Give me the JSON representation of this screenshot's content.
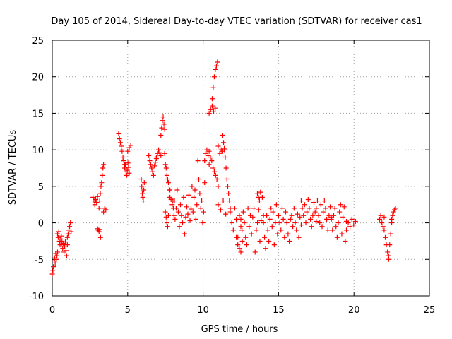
{
  "chart_data": {
    "type": "scatter",
    "title": "Day 105 of 2014, Sidereal Day-to-day VTEC variation (SDTVAR) for receiver cas1",
    "xlabel": "GPS time / hours",
    "ylabel": "SDTVAR / TECUs",
    "xlim": [
      0,
      25
    ],
    "ylim": [
      -10,
      25
    ],
    "xticks": [
      0,
      5,
      10,
      15,
      20,
      25
    ],
    "yticks": [
      -10,
      -5,
      0,
      5,
      10,
      15,
      20,
      25
    ],
    "grid": true,
    "marker": "+",
    "color": "#ff0000",
    "series": [
      {
        "name": "SDTVAR",
        "segments": [
          {
            "x0": 0.0,
            "x1": 0.35,
            "ys": [
              -7,
              -6.5,
              -6,
              -5.2,
              -4.8,
              -5.5,
              -4.2,
              -5,
              -4.5,
              -4
            ]
          },
          {
            "x0": 0.35,
            "x1": 0.6,
            "ys": [
              -1.5,
              -2,
              -1.2,
              -2.5,
              -3,
              -2.2,
              -1.8
            ]
          },
          {
            "x0": 0.6,
            "x1": 1.0,
            "ys": [
              -3,
              -2.5,
              -3.5,
              -2.8,
              -4,
              -3.2,
              -2.6,
              -3.8,
              -4.5,
              -3
            ]
          },
          {
            "x0": 1.0,
            "x1": 1.25,
            "ys": [
              -2,
              -1.5,
              -1,
              -0.5,
              0,
              -1.2
            ]
          },
          {
            "x0": 2.7,
            "x1": 3.0,
            "ys": [
              3.5,
              3,
              2.5,
              3.2,
              2.8,
              3.6
            ]
          },
          {
            "x0": 3.0,
            "x1": 3.2,
            "ys": [
              -0.8,
              -1,
              -1.2,
              -0.9,
              -2
            ]
          },
          {
            "x0": 3.1,
            "x1": 3.4,
            "ys": [
              2,
              3,
              4,
              5,
              5.5,
              6.5,
              7.5,
              8
            ]
          },
          {
            "x0": 3.4,
            "x1": 3.55,
            "ys": [
              1.5,
              2,
              1.8
            ]
          },
          {
            "x0": 4.4,
            "x1": 4.8,
            "ys": [
              12.2,
              11.5,
              11,
              10.5,
              9.8,
              9,
              8.5,
              8
            ]
          },
          {
            "x0": 4.8,
            "x1": 5.1,
            "ys": [
              7.5,
              8,
              7,
              6.5,
              7.2,
              8.2,
              7.6,
              6.8
            ]
          },
          {
            "x0": 5.0,
            "x1": 5.2,
            "ys": [
              9.8,
              10.3,
              10.6
            ]
          },
          {
            "x0": 5.9,
            "x1": 6.1,
            "ys": [
              6,
              5,
              4,
              3.5,
              3,
              4.5,
              5.5
            ]
          },
          {
            "x0": 6.4,
            "x1": 6.9,
            "ys": [
              9.2,
              8.5,
              8,
              7.5,
              7,
              6.5,
              7.8,
              8.3,
              8.8
            ]
          },
          {
            "x0": 6.9,
            "x1": 7.2,
            "ys": [
              9,
              9.5,
              10,
              9.6,
              9.2
            ]
          },
          {
            "x0": 7.2,
            "x1": 7.45,
            "ys": [
              12,
              13,
              14,
              14.5,
              13.5,
              12.8
            ]
          },
          {
            "x0": 7.45,
            "x1": 7.8,
            "ys": [
              9.5,
              8,
              7.5,
              6.5,
              6,
              5.5,
              4.5,
              3.5
            ]
          },
          {
            "x0": 7.5,
            "x1": 7.7,
            "ys": [
              1.5,
              0.8,
              0,
              -0.5,
              1
            ]
          },
          {
            "x0": 7.8,
            "x1": 8.1,
            "ys": [
              4.5,
              3.2,
              2.5,
              2,
              3
            ]
          },
          {
            "x0": 8.0,
            "x1": 9.2,
            "ys": [
              3,
              1,
              0.5,
              2,
              4.5,
              1.5,
              -0.5,
              2.5,
              1,
              0,
              3.5,
              -1.5,
              0.8,
              2.2,
              1.2,
              3.8,
              0.3,
              1.8
            ]
          },
          {
            "x0": 9.2,
            "x1": 10.1,
            "ys": [
              2,
              5,
              1.5,
              3.5,
              4.5,
              0.5,
              2.5,
              8.5,
              6,
              4,
              2,
              3,
              0,
              1.5,
              5.5
            ]
          },
          {
            "x0": 10.1,
            "x1": 10.4,
            "ys": [
              8.5,
              9.5,
              10,
              9.2,
              9.8
            ]
          },
          {
            "x0": 10.4,
            "x1": 10.8,
            "ys": [
              15,
              15.5,
              16,
              15.2,
              15.7
            ]
          },
          {
            "x0": 10.6,
            "x1": 10.95,
            "ys": [
              17,
              18.5,
              20,
              21,
              21.5,
              22
            ]
          },
          {
            "x0": 10.4,
            "x1": 11.0,
            "ys": [
              8,
              9,
              8.5,
              7.5,
              7,
              6.5,
              6,
              5
            ]
          },
          {
            "x0": 11.0,
            "x1": 11.4,
            "ys": [
              10.5,
              9.5,
              10,
              9.8,
              10.2
            ]
          },
          {
            "x0": 11.3,
            "x1": 11.8,
            "ys": [
              12,
              11,
              10,
              9,
              7.5,
              6,
              5,
              4,
              3,
              2
            ]
          },
          {
            "x0": 11.0,
            "x1": 11.5,
            "ys": [
              2.5,
              1.8,
              3,
              1.2
            ]
          },
          {
            "x0": 11.8,
            "x1": 12.5,
            "ys": [
              1.5,
              0,
              -1,
              2,
              0.5,
              -2,
              1,
              -0.5
            ]
          },
          {
            "x0": 12.2,
            "x1": 12.6,
            "ys": [
              -2,
              -3,
              -3.5,
              -4,
              -2.5
            ]
          },
          {
            "x0": 12.5,
            "x1": 14.0,
            "ys": [
              0.5,
              -1,
              1.5,
              0,
              -2,
              -3,
              2,
              -0.5,
              1,
              -1.5,
              0.8,
              2,
              -4,
              -1,
              0,
              1.8,
              -2.5,
              0.3,
              3.5,
              1
            ]
          },
          {
            "x0": 13.6,
            "x1": 13.8,
            "ys": [
              4,
              3.5,
              3,
              4.2
            ]
          },
          {
            "x0": 14.0,
            "x1": 15.0,
            "ys": [
              0,
              -2,
              -3.5,
              1,
              -1,
              -2.5,
              0.5,
              2,
              -0.5,
              1.5,
              -3,
              0,
              2.5,
              -1.5,
              1
            ]
          },
          {
            "x0": 15.0,
            "x1": 16.5,
            "ys": [
              1,
              0,
              -1,
              2,
              0.5,
              -2,
              1.5,
              0,
              -1.5,
              -2.5,
              0.5,
              1,
              -0.5,
              2,
              0,
              -1,
              1.2,
              -2,
              0.8,
              -0.3
            ]
          },
          {
            "x0": 16.5,
            "x1": 17.5,
            "ys": [
              3,
              2,
              1,
              2.5,
              0,
              1.5,
              3.2,
              2,
              0.5,
              -0.5,
              1,
              2.8,
              1.5,
              0.2
            ]
          },
          {
            "x0": 17.5,
            "x1": 18.5,
            "ys": [
              2,
              3,
              1,
              0,
              2.5,
              -0.5,
              1.5,
              3,
              2,
              0.5,
              -1,
              1,
              2.2,
              0.8
            ]
          },
          {
            "x0": 18.5,
            "x1": 19.5,
            "ys": [
              0.5,
              -1,
              1,
              2,
              -0.5,
              -2,
              0,
              1.5,
              2.5,
              -1.5,
              0.8,
              2.2,
              -2.5,
              0.2
            ]
          },
          {
            "x0": 19.5,
            "x1": 20.1,
            "ys": [
              -1,
              0,
              -0.5,
              0.5,
              -0.3,
              0.2
            ]
          },
          {
            "x0": 21.7,
            "x1": 22.0,
            "ys": [
              0.5,
              1,
              0,
              -0.5,
              0.8
            ]
          },
          {
            "x0": 22.0,
            "x1": 22.3,
            "ys": [
              -1,
              -2,
              -3,
              -4,
              -4.5
            ]
          },
          {
            "x0": 22.3,
            "x1": 22.5,
            "ys": [
              -5,
              -3,
              -1.5,
              0
            ]
          },
          {
            "x0": 22.5,
            "x1": 22.75,
            "ys": [
              0.5,
              1,
              1.5,
              1.8,
              2
            ]
          }
        ]
      }
    ]
  }
}
